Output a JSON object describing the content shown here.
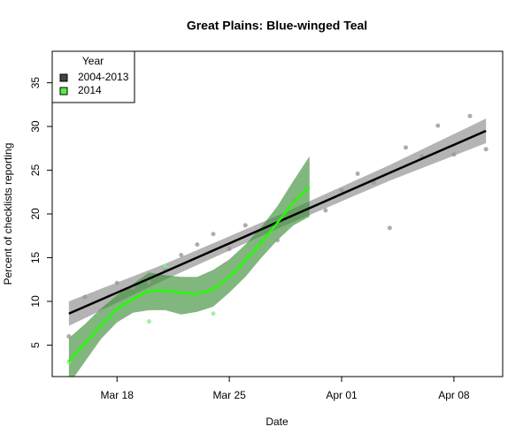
{
  "chart_data": {
    "type": "scatter",
    "title": "Great Plains: Blue-winged Teal",
    "xlabel": "Date",
    "ylabel": "Percent of checklists reporting",
    "xlim": [
      13.96,
      42.04
    ],
    "ylim": [
      1.4,
      38.6
    ],
    "xticks": [
      {
        "value": 18,
        "label": "Mar 18"
      },
      {
        "value": 25,
        "label": "Mar 25"
      },
      {
        "value": 32,
        "label": "Apr 01"
      },
      {
        "value": 39,
        "label": "Apr 08"
      }
    ],
    "yticks": [
      5,
      10,
      15,
      20,
      25,
      30,
      35
    ],
    "legend": {
      "title": "Year",
      "position": "topleft"
    },
    "series": [
      {
        "name": "2004-2013",
        "color": "#444444",
        "point_color": "#999999",
        "line_color": "#000000",
        "band_color": "#8c8c8c",
        "x": [
          15,
          16,
          17,
          18,
          19,
          20,
          21,
          22,
          23,
          24,
          25,
          26,
          27,
          28,
          29,
          31,
          32,
          33,
          34,
          35,
          36,
          37,
          38,
          39,
          40,
          41
        ],
        "values": [
          6.0,
          10.5,
          9.0,
          12.1,
          11.6,
          12.2,
          13.7,
          15.3,
          16.5,
          17.7,
          16.0,
          18.7,
          16.8,
          17.0,
          21.6,
          20.4,
          22.7,
          24.6,
          23.6,
          18.4,
          27.6,
          26.6,
          30.1,
          26.8,
          31.2,
          27.4
        ],
        "fit": {
          "x": [
            15,
            21,
            28,
            35,
            41
          ],
          "values": [
            8.6,
            13.4,
            19.05,
            24.7,
            29.5
          ],
          "lower": [
            7.2,
            12.5,
            18.3,
            23.8,
            28.1
          ],
          "upper": [
            10.0,
            14.3,
            19.8,
            25.6,
            30.9
          ]
        }
      },
      {
        "name": "2014",
        "color": "#55ee44",
        "point_color": "#88ee88",
        "line_color": "#22ff00",
        "band_color": "#3f8f3a",
        "x": [
          15,
          20,
          21,
          24
        ],
        "values": [
          3.1,
          7.7,
          14.0,
          8.6
        ],
        "fit": {
          "x": [
            15,
            16,
            17,
            18,
            19,
            20,
            21,
            22,
            23,
            24,
            25,
            26,
            27,
            28,
            29,
            30
          ],
          "values": [
            3.1,
            5.2,
            7.3,
            9.1,
            10.3,
            11.2,
            11.2,
            11.0,
            10.8,
            11.4,
            12.8,
            14.7,
            16.7,
            19.0,
            21.3,
            23.1
          ],
          "lower": [
            0.5,
            3.1,
            5.7,
            7.6,
            8.7,
            9.0,
            9.0,
            8.5,
            8.8,
            9.4,
            11.0,
            12.8,
            15.0,
            17.0,
            18.7,
            19.7
          ],
          "upper": [
            5.8,
            7.4,
            9.2,
            10.7,
            12.0,
            13.3,
            13.0,
            12.8,
            12.8,
            13.6,
            14.8,
            16.5,
            18.5,
            20.9,
            23.8,
            26.6
          ]
        }
      }
    ]
  }
}
